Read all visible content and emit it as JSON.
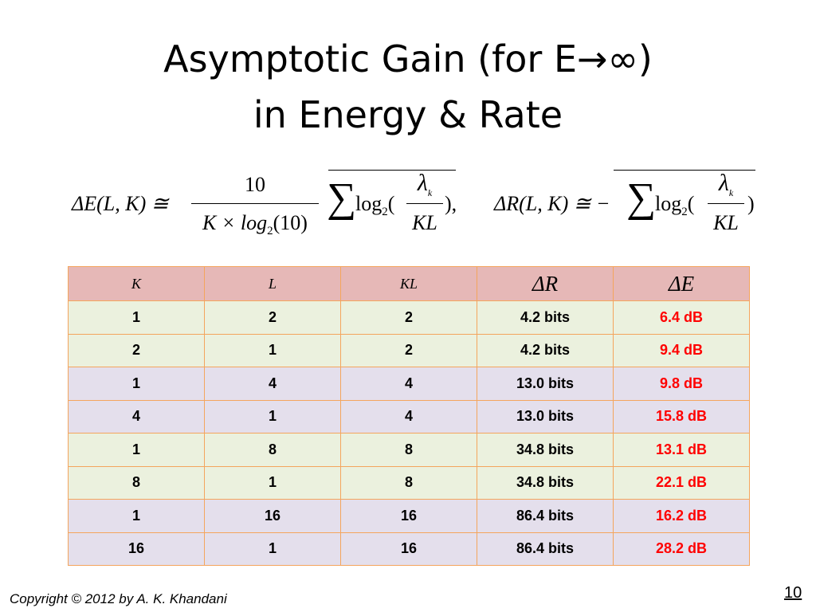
{
  "slide": {
    "title_line1": "Asymptotic Gain (for E→∞)",
    "title_line2": "in Energy & Rate",
    "copyright": "Copyright © 2012 by A. K. Khandani",
    "page_number": "10"
  },
  "formula_e": {
    "lhs": "ΔE(L, K) ≅",
    "numerator": "10",
    "denominator": "K × log",
    "denominator_sub": "2",
    "denominator_tail": "(10)",
    "sigma": "∑",
    "log": "log",
    "log_sub": "2",
    "paren_open": "(",
    "lambda": "λ",
    "lambda_sub": "k",
    "frac_den": "KL",
    "paren_close": "),"
  },
  "formula_r": {
    "lhs": "ΔR(L, K) ≅ −",
    "sigma": "∑",
    "log": "log",
    "log_sub": "2",
    "paren_open": "(",
    "lambda": "λ",
    "lambda_sub": "k",
    "frac_den": "KL",
    "paren_close": ")"
  },
  "table": {
    "headers": [
      "K",
      "L",
      "KL",
      "ΔR",
      "ΔE"
    ],
    "rows": [
      [
        "1",
        "2",
        "2",
        "4.2 bits",
        "6.4 dB"
      ],
      [
        "2",
        "1",
        "2",
        "4.2 bits",
        "9.4 dB"
      ],
      [
        "1",
        "4",
        "4",
        "13.0 bits",
        "9.8 dB"
      ],
      [
        "4",
        "1",
        "4",
        "13.0 bits",
        "15.8 dB"
      ],
      [
        "1",
        "8",
        "8",
        "34.8 bits",
        "13.1 dB"
      ],
      [
        "8",
        "1",
        "8",
        "34.8 bits",
        "22.1 dB"
      ],
      [
        "1",
        "16",
        "16",
        "86.4 bits",
        "16.2 dB"
      ],
      [
        "16",
        "1",
        "16",
        "86.4 bits",
        "28.2 dB"
      ]
    ]
  },
  "colors": {
    "header_bg": "#e6b8b7",
    "row_green": "#ebf1de",
    "row_purple": "#e4dfec",
    "border": "#f4a55d",
    "gain_text": "#ff0000"
  }
}
